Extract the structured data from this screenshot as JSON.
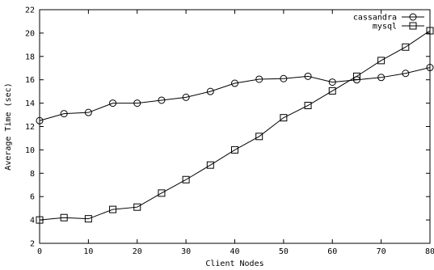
{
  "chart_data": {
    "type": "line",
    "title": "",
    "xlabel": "Client Nodes",
    "ylabel": "Average Time (sec)",
    "xlim": [
      0,
      80
    ],
    "ylim": [
      2,
      22
    ],
    "xticks": [
      0,
      10,
      20,
      30,
      40,
      50,
      60,
      70,
      80
    ],
    "yticks": [
      2,
      4,
      6,
      8,
      10,
      12,
      14,
      16,
      18,
      20,
      22
    ],
    "grid": false,
    "legend_position": "top-right",
    "x": [
      0,
      5,
      10,
      15,
      20,
      25,
      30,
      35,
      40,
      45,
      50,
      55,
      60,
      65,
      70,
      75,
      80
    ],
    "series": [
      {
        "name": "cassandra",
        "marker": "circle",
        "values": [
          12.5,
          13.1,
          13.2,
          14.0,
          14.0,
          14.25,
          14.5,
          15.0,
          15.7,
          16.05,
          16.1,
          16.3,
          15.8,
          16.0,
          16.2,
          16.55,
          17.05
        ]
      },
      {
        "name": "mysql",
        "marker": "square",
        "values": [
          4.0,
          4.2,
          4.1,
          4.9,
          5.1,
          6.3,
          7.45,
          8.7,
          10.0,
          11.15,
          12.75,
          13.8,
          15.05,
          16.3,
          17.65,
          18.8,
          20.2
        ]
      }
    ]
  }
}
